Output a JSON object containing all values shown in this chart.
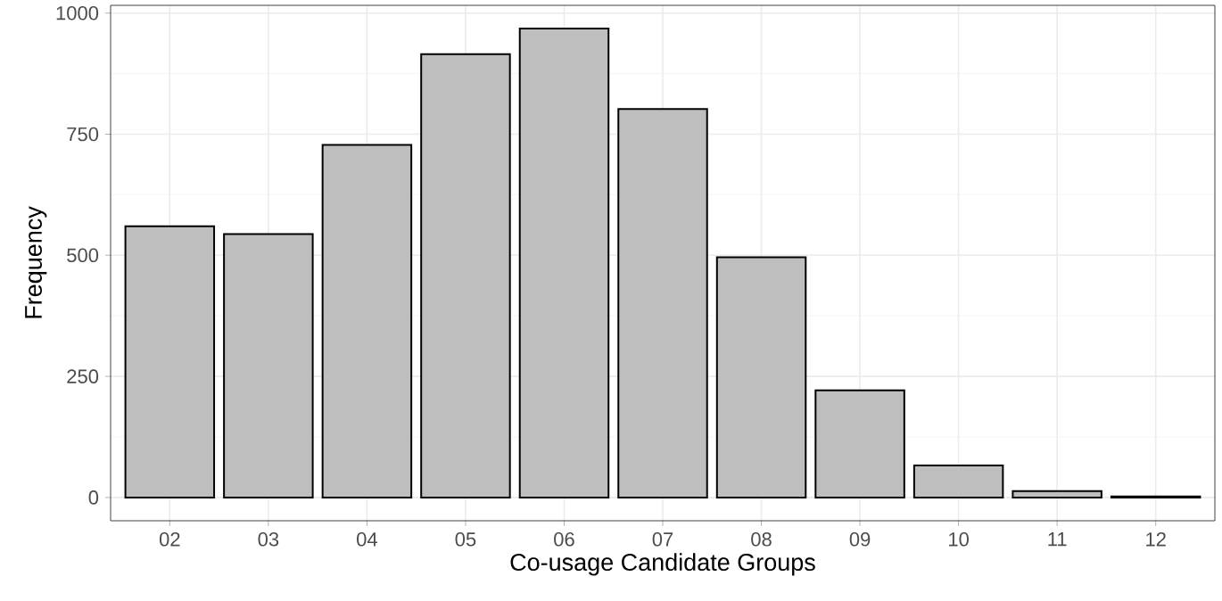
{
  "chart_data": {
    "type": "bar",
    "xlabel": "Co-usage Candidate Groups",
    "ylabel": "Frequency",
    "categories": [
      "02",
      "03",
      "04",
      "05",
      "06",
      "07",
      "08",
      "09",
      "10",
      "11",
      "12"
    ],
    "values": [
      560,
      544,
      728,
      915,
      968,
      802,
      496,
      221,
      66,
      13,
      2
    ],
    "color": "#bebebe",
    "ylim": [
      -48,
      1016
    ],
    "yticks": [
      0,
      250,
      500,
      750,
      1000
    ],
    "grid": true
  }
}
